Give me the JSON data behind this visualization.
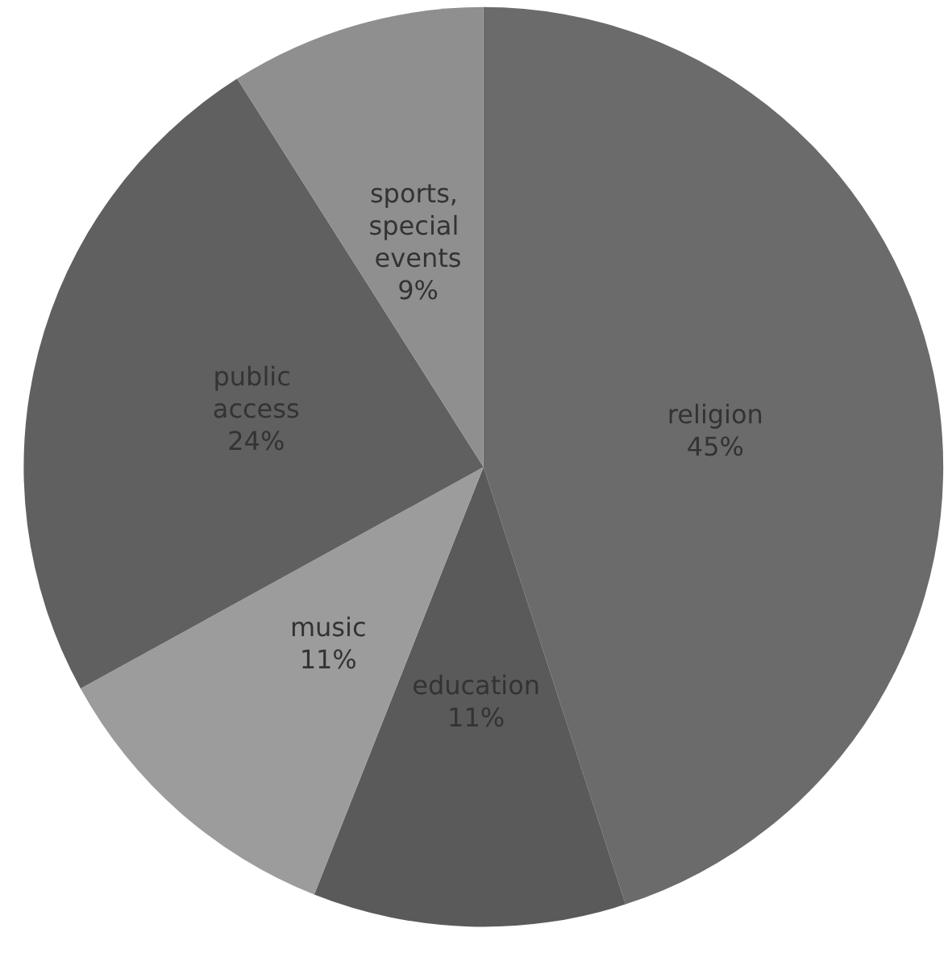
{
  "chart_data": {
    "type": "pie",
    "categories": [
      "religion",
      "education",
      "music",
      "public access",
      "sports, special events"
    ],
    "values": [
      45,
      11,
      11,
      24,
      9
    ],
    "value_labels": [
      "45%",
      "11%",
      "11%",
      "24%",
      "9%"
    ],
    "colors": [
      "#6b6b6b",
      "#5a5a5a",
      "#9c9c9c",
      "#606060",
      "#8f8f8f"
    ],
    "legend": false
  }
}
